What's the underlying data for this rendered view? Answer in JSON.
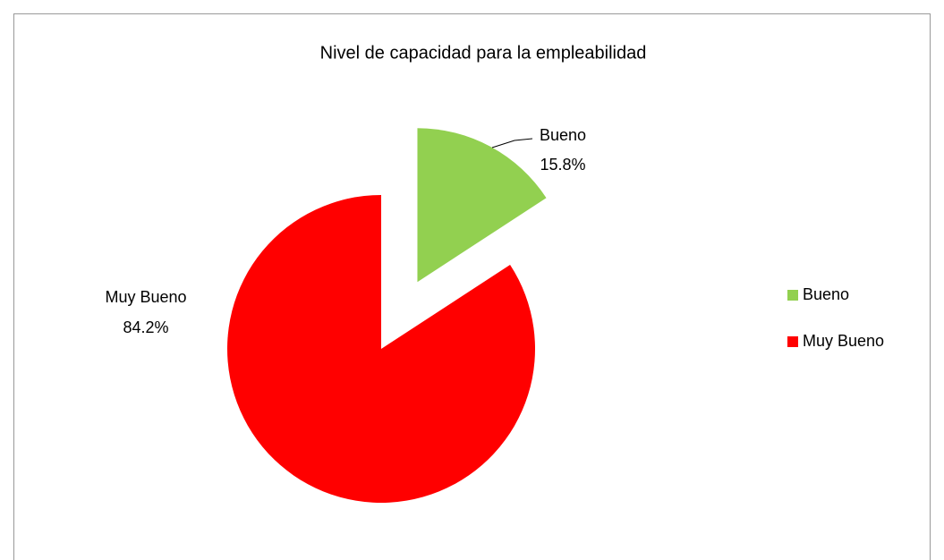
{
  "chart_data": {
    "type": "pie",
    "title": "Nivel de capacidad para la empleabilidad",
    "categories": [
      "Bueno",
      "Muy Bueno"
    ],
    "values": [
      15.8,
      84.2
    ],
    "value_labels": [
      "15.8%",
      "84.2%"
    ],
    "colors": [
      "#92d050",
      "#ff0000"
    ],
    "legend": "right"
  }
}
